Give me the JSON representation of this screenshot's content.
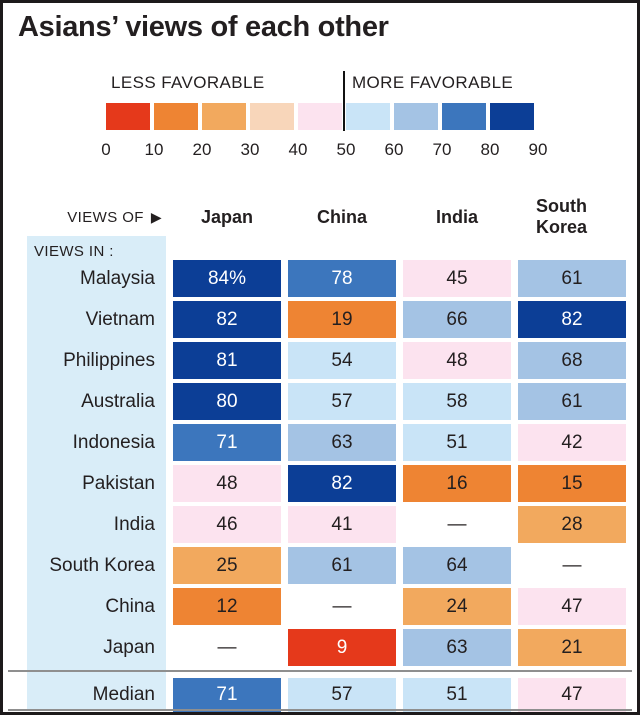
{
  "chart_data": {
    "type": "heatmap",
    "title": "Asians’ views of each other",
    "legend": {
      "less_label": "LESS FAVORABLE",
      "more_label": "MORE FAVORABLE",
      "ticks": [
        "0",
        "10",
        "20",
        "30",
        "40",
        "50",
        "60",
        "70",
        "80",
        "90"
      ],
      "colors": [
        "#e5391b",
        "#ee8433",
        "#f2a95e",
        "#f8d6ba",
        "#fce3ef",
        "#c9e4f7",
        "#a4c3e4",
        "#3c76bd",
        "#0c3e96"
      ]
    },
    "views_of_label": "VIEWS OF",
    "views_in_label": "VIEWS IN :",
    "columns": [
      "Japan",
      "China",
      "India",
      "South Korea"
    ],
    "null_display": "—",
    "rows": [
      {
        "label": "Malaysia",
        "values": [
          84,
          78,
          45,
          61
        ],
        "display": [
          "84%",
          "78",
          "45",
          "61"
        ]
      },
      {
        "label": "Vietnam",
        "values": [
          82,
          19,
          66,
          82
        ]
      },
      {
        "label": "Philippines",
        "values": [
          81,
          54,
          48,
          68
        ]
      },
      {
        "label": "Australia",
        "values": [
          80,
          57,
          58,
          61
        ]
      },
      {
        "label": "Indonesia",
        "values": [
          71,
          63,
          51,
          42
        ]
      },
      {
        "label": "Pakistan",
        "values": [
          48,
          82,
          16,
          15
        ]
      },
      {
        "label": "India",
        "values": [
          46,
          41,
          null,
          28
        ]
      },
      {
        "label": "South Korea",
        "values": [
          25,
          61,
          64,
          null
        ]
      },
      {
        "label": "China",
        "values": [
          12,
          null,
          24,
          47
        ]
      },
      {
        "label": "Japan",
        "values": [
          null,
          9,
          63,
          21
        ]
      },
      {
        "label": "Median",
        "values": [
          71,
          57,
          51,
          47
        ],
        "median": true
      }
    ]
  }
}
